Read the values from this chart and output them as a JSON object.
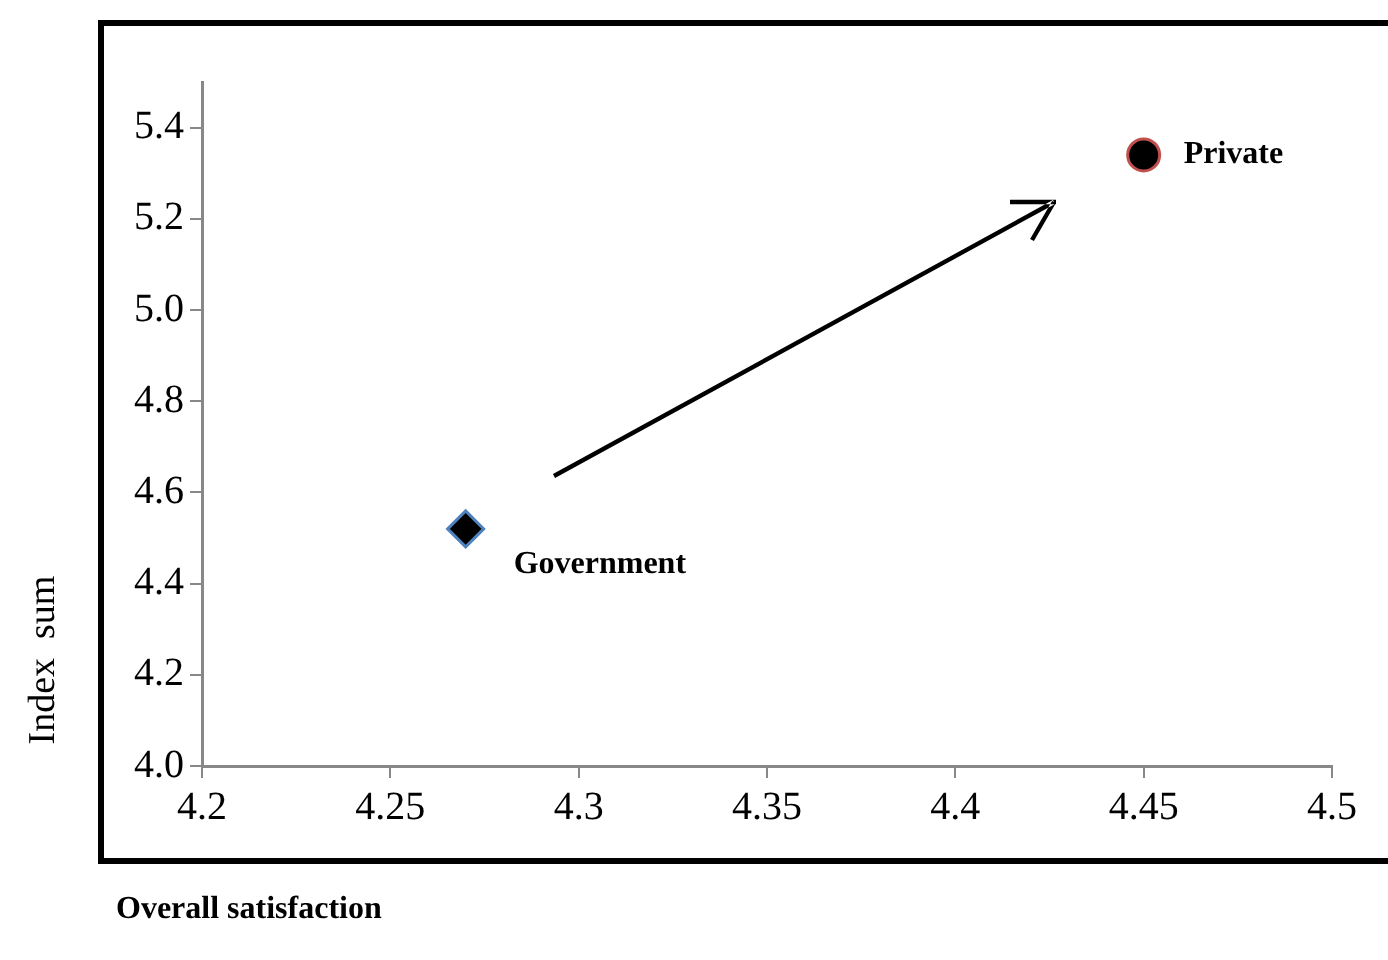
{
  "chart_data": {
    "type": "scatter",
    "xlabel": "Overall satisfaction",
    "ylabel": "Index  sum",
    "xlim": [
      4.2,
      4.5
    ],
    "xticks": [
      4.2,
      4.25,
      4.3,
      4.35,
      4.4,
      4.45,
      4.5
    ],
    "ylim": [
      4.0,
      5.5
    ],
    "yticks": [
      {
        "value": 4.0,
        "label": "4.0"
      },
      4.2,
      4.4,
      4.6,
      4.8,
      {
        "value": 5.0,
        "label": "5.0"
      },
      5.2,
      5.4
    ],
    "grid": false,
    "legend": false,
    "series": [
      {
        "name": "Government",
        "color": "#4f81bd",
        "marker": "diamond",
        "x": [
          4.27
        ],
        "values": [
          4.52
        ]
      },
      {
        "name": "Private",
        "color": "#c0504d",
        "marker": "circle",
        "x": [
          4.45
        ],
        "values": [
          5.34
        ]
      }
    ]
  }
}
